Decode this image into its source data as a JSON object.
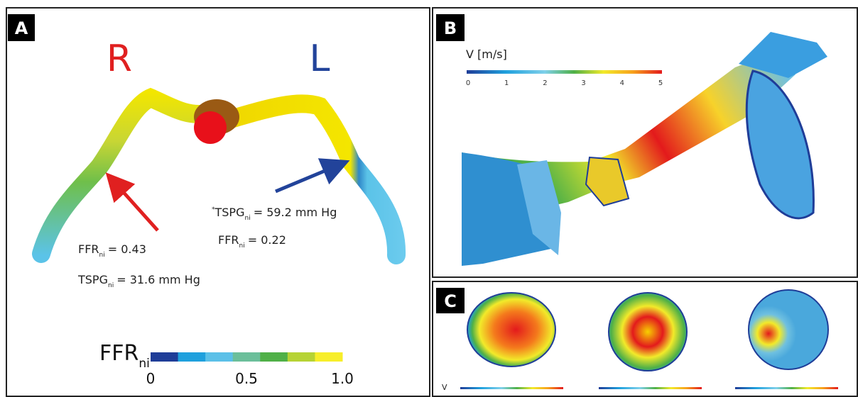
{
  "panel_a": {
    "label": "A",
    "right": "R",
    "left": "L",
    "annotations": [
      {
        "name": "FFR",
        "sub": "ni",
        "text": "= 0.43"
      },
      {
        "name": "TSPG",
        "sub": "ni",
        "text": "= 31.6 mm Hg"
      },
      {
        "prefix": "*",
        "name": "TSPG",
        "sub": "ni",
        "text": "= 59.2 mm Hg"
      },
      {
        "name": "FFR",
        "sub": "ni",
        "text": "= 0.22"
      }
    ],
    "colorbar": {
      "title": "FFR",
      "sub": "ni",
      "ticks": [
        "0",
        "0.5",
        "1.0"
      ]
    }
  },
  "panel_b": {
    "label": "B",
    "colorbar": {
      "title": "V [m/s]",
      "ticks": [
        "0",
        "1",
        "2",
        "3",
        "4",
        "5"
      ]
    }
  },
  "panel_c": {
    "label": "C",
    "axis_label": "V"
  }
}
